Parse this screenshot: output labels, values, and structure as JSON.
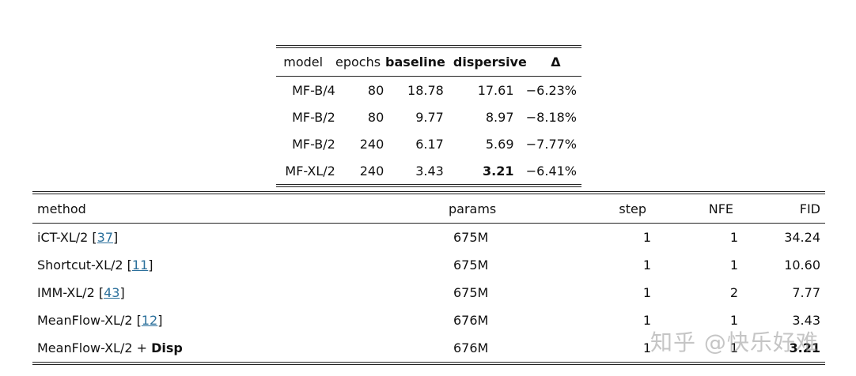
{
  "table1": {
    "headers": [
      "model",
      "epochs",
      "baseline",
      "dispersive",
      "Δ"
    ],
    "rows": [
      {
        "model": "MF-B/4",
        "epochs": "80",
        "baseline": "18.78",
        "dispersive": "17.61",
        "delta": "−6.23%"
      },
      {
        "model": "MF-B/2",
        "epochs": "80",
        "baseline": "9.77",
        "dispersive": "8.97",
        "delta": "−8.18%"
      },
      {
        "model": "MF-B/2",
        "epochs": "240",
        "baseline": "6.17",
        "dispersive": "5.69",
        "delta": "−7.77%"
      },
      {
        "model": "MF-XL/2",
        "epochs": "240",
        "baseline": "3.43",
        "dispersive": "3.21",
        "delta": "−6.41%"
      }
    ]
  },
  "table2": {
    "headers": [
      "method",
      "params",
      "step",
      "NFE",
      "FID"
    ],
    "rows": [
      {
        "method": "iCT-XL/2 [",
        "cite": "37",
        "close": "]",
        "params": "675M",
        "step": "1",
        "nfe": "1",
        "fid": "34.24"
      },
      {
        "method": "Shortcut-XL/2 [",
        "cite": "11",
        "close": "]",
        "params": "675M",
        "step": "1",
        "nfe": "1",
        "fid": "10.60"
      },
      {
        "method": "IMM-XL/2 [",
        "cite": "43",
        "close": "]",
        "params": "675M",
        "step": "1",
        "nfe": "2",
        "fid": "7.77"
      },
      {
        "method": "MeanFlow-XL/2 [",
        "cite": "12",
        "close": "]",
        "params": "676M",
        "step": "1",
        "nfe": "1",
        "fid": "3.43"
      }
    ],
    "last_row": {
      "method": "MeanFlow-XL/2 + ",
      "method_bold": "Disp",
      "params": "676M",
      "step": "1",
      "nfe": "1",
      "fid": "3.21"
    }
  },
  "watermark": "知乎 @快乐好难"
}
